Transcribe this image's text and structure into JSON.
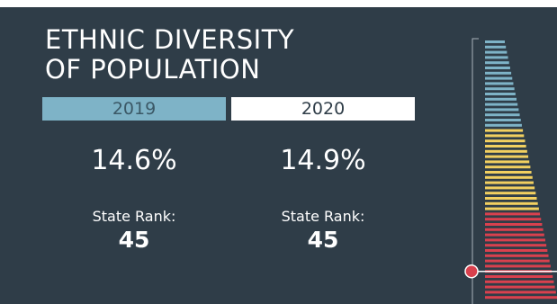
{
  "title_line1": "ETHNIC DIVERSITY",
  "title_line2": "OF POPULATION",
  "years": [
    {
      "year": "2019",
      "value": "14.6%",
      "rank_label": "State Rank:",
      "rank": "45"
    },
    {
      "year": "2020",
      "value": "14.9%",
      "rank_label": "State Rank:",
      "rank": "45"
    }
  ],
  "chart_data": {
    "type": "bar",
    "description_orientation": "horizontal",
    "total_states": 50,
    "highlighted_rank": 45,
    "color_groups": [
      {
        "ranks": [
          1,
          17
        ],
        "color": "#7eb3c7"
      },
      {
        "ranks": [
          18,
          33
        ],
        "color": "#f2d060"
      },
      {
        "ranks": [
          34,
          50
        ],
        "color": "#d9414e"
      }
    ],
    "highlight_color": "#d9414e"
  },
  "colors": {
    "background": "#2f3d48",
    "tab_2019": "#7eb3c7",
    "tab_2020": "#ffffff"
  }
}
